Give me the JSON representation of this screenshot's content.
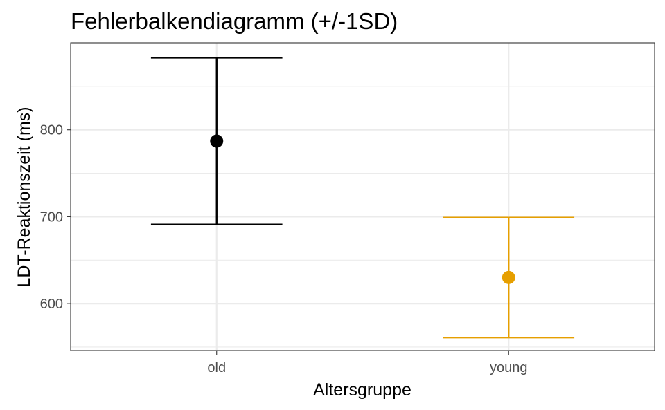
{
  "chart_data": {
    "type": "errorbar",
    "title": "Fehlerbalkendiagramm (+/-1SD)",
    "xlabel": "Altersgruppe",
    "ylabel": "LDT-Reaktionszeit (ms)",
    "categories": [
      "old",
      "young"
    ],
    "means": [
      787,
      630
    ],
    "lower": [
      691,
      561
    ],
    "upper": [
      883,
      699
    ],
    "colors": [
      "#000000",
      "#E69F00"
    ],
    "ylim": [
      546,
      900
    ],
    "y_ticks": [
      600,
      700,
      800
    ],
    "y_minor_ticks": [
      550,
      650,
      750,
      850
    ],
    "grid": true,
    "legend": "none"
  }
}
